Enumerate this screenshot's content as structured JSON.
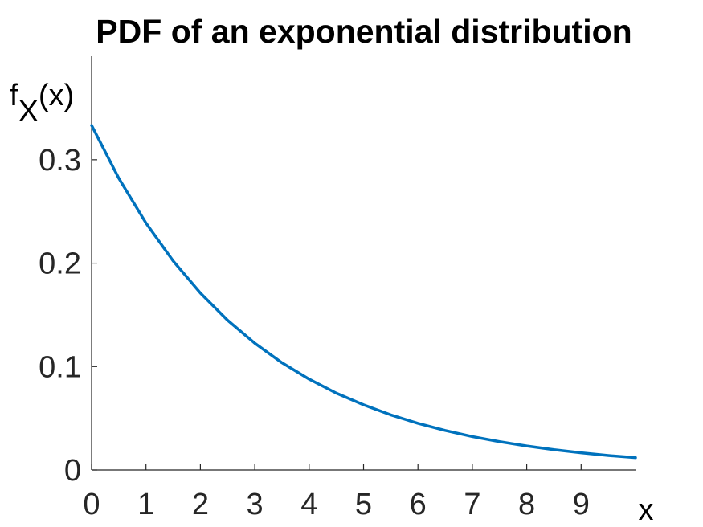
{
  "chart_data": {
    "type": "line",
    "title": "PDF of an exponential distribution",
    "xlabel": "x",
    "ylabel": {
      "main": "f",
      "sub": "X",
      "suffix": "(x)"
    },
    "xlim": [
      0,
      10
    ],
    "ylim": [
      0,
      0.3333
    ],
    "x_ticks": [
      0,
      1,
      2,
      3,
      4,
      5,
      6,
      7,
      8,
      9
    ],
    "y_ticks": [
      0,
      0.1,
      0.2,
      0.3
    ],
    "grid": false,
    "legend": "none",
    "series": [
      {
        "color": "#0072bd",
        "x": [
          0,
          0.5,
          1,
          1.5,
          2,
          2.5,
          3,
          3.5,
          4,
          4.5,
          5,
          5.5,
          6,
          6.5,
          7,
          7.5,
          8,
          8.5,
          9,
          9.5,
          10
        ],
        "y": [
          0.3333,
          0.2821,
          0.2388,
          0.2021,
          0.1711,
          0.1448,
          0.1226,
          0.1037,
          0.0878,
          0.0743,
          0.063,
          0.0533,
          0.0451,
          0.0382,
          0.0323,
          0.0274,
          0.0232,
          0.0196,
          0.0166,
          0.014,
          0.0119
        ]
      }
    ]
  }
}
